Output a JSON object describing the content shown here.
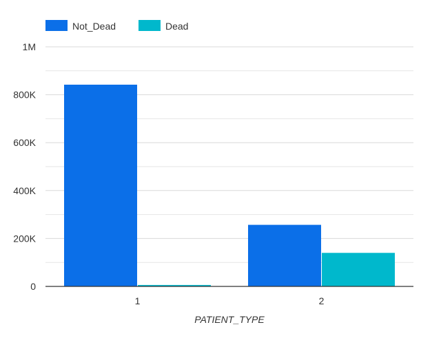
{
  "chart_data": {
    "type": "bar",
    "categories": [
      "1",
      "2"
    ],
    "series": [
      {
        "name": "Not_Dead",
        "values": [
          842000,
          257000
        ],
        "color": "#0b6fe8"
      },
      {
        "name": "Dead",
        "values": [
          6000,
          140000
        ],
        "color": "#00b8cc"
      }
    ],
    "xlabel": "PATIENT_TYPE",
    "ylabel": "",
    "ylim": [
      0,
      1000000
    ],
    "y_ticks": [
      {
        "value": 0,
        "label": "0"
      },
      {
        "value": 200000,
        "label": "200K"
      },
      {
        "value": 400000,
        "label": "400K"
      },
      {
        "value": 600000,
        "label": "600K"
      },
      {
        "value": 800000,
        "label": "800K"
      },
      {
        "value": 1000000,
        "label": "1M"
      }
    ],
    "minor_gridlines": true,
    "grid": true,
    "legend_position": "top-left"
  }
}
